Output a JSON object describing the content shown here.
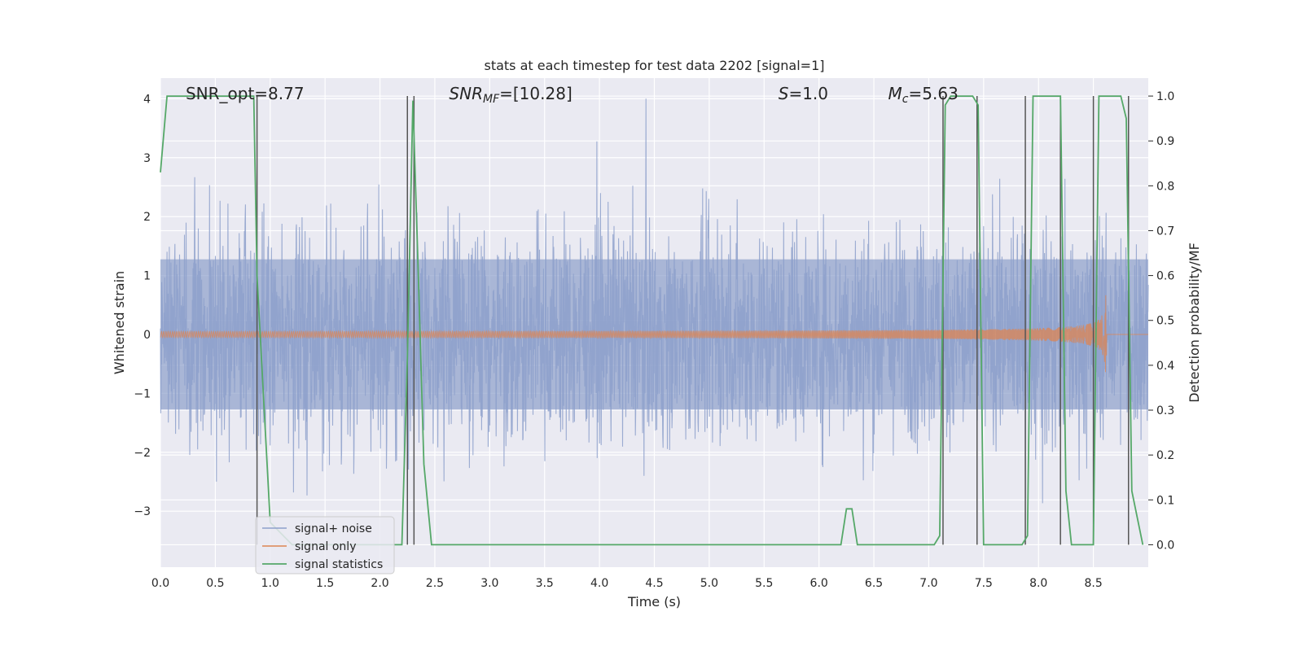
{
  "chart_data": {
    "type": "line",
    "title": "stats at each timestep for test data 2202 [signal=1]",
    "xlabel": "Time (s)",
    "ylabel": "Whitened strain",
    "ylabel_right": "Detection probability/MF",
    "xlim": [
      0.0,
      9.0
    ],
    "ylim": [
      -3.95,
      4.35
    ],
    "ylim_right": [
      -0.05,
      1.04
    ],
    "x_ticks": [
      "0.0",
      "0.5",
      "1.0",
      "1.5",
      "2.0",
      "2.5",
      "3.0",
      "3.5",
      "4.0",
      "4.5",
      "5.0",
      "5.5",
      "6.0",
      "6.5",
      "7.0",
      "7.5",
      "8.0",
      "8.5"
    ],
    "y_ticks": [
      "4",
      "3",
      "2",
      "1",
      "0",
      "−1",
      "−2",
      "−3"
    ],
    "y_right_ticks": [
      "1.0",
      "0.9",
      "0.8",
      "0.7",
      "0.6",
      "0.5",
      "0.4",
      "0.3",
      "0.2",
      "0.1",
      "0.0"
    ],
    "grid": true,
    "legend_placement": "lower-left",
    "annotations": [
      {
        "name": "snr-opt",
        "text": "SNR_opt=8.77",
        "x": 0.2
      },
      {
        "name": "snr-mf",
        "text": "=[10.28]",
        "math": "SNR_MF",
        "x": 2.6
      },
      {
        "name": "stat-s",
        "text": "=1.0",
        "math": "S",
        "x": 5.6
      },
      {
        "name": "chirp-mass",
        "text": "=5.63",
        "math": "M_c",
        "x": 6.6
      }
    ],
    "series": [
      {
        "name": "signal+ noise",
        "color": "#8da0cb",
        "axis": "left",
        "kind": "noise",
        "typical_amplitude": 1.7,
        "peak_amplitude": 4.0
      },
      {
        "name": "signal only",
        "color": "#dd8452",
        "axis": "left",
        "kind": "chirp",
        "merger_time": 8.62,
        "peak_amplitude": 0.9
      },
      {
        "name": "signal statistics",
        "color": "#55a868",
        "axis": "right",
        "x": [
          0.0,
          0.06,
          0.12,
          0.85,
          0.88,
          1.0,
          1.2,
          2.2,
          2.25,
          2.3,
          2.35,
          2.4,
          2.47,
          2.6,
          6.2,
          6.25,
          6.3,
          6.35,
          7.05,
          7.1,
          7.15,
          7.2,
          7.4,
          7.45,
          7.5,
          7.85,
          7.9,
          7.95,
          8.15,
          8.2,
          8.25,
          8.3,
          8.5,
          8.55,
          8.6,
          8.75,
          8.8,
          8.85,
          8.95
        ],
        "values": [
          0.83,
          1.0,
          1.0,
          1.0,
          0.6,
          0.05,
          0.0,
          0.0,
          0.42,
          0.99,
          0.6,
          0.18,
          0.0,
          0.0,
          0.0,
          0.08,
          0.08,
          0.0,
          0.0,
          0.02,
          0.98,
          1.0,
          1.0,
          0.98,
          0.0,
          0.0,
          0.02,
          1.0,
          1.0,
          1.0,
          0.12,
          0.0,
          0.0,
          1.0,
          1.0,
          1.0,
          0.95,
          0.12,
          0.0
        ]
      }
    ],
    "vertical_lines": [
      0.88,
      2.25,
      2.31,
      7.13,
      7.44,
      7.88,
      8.2,
      8.5,
      8.82
    ]
  }
}
